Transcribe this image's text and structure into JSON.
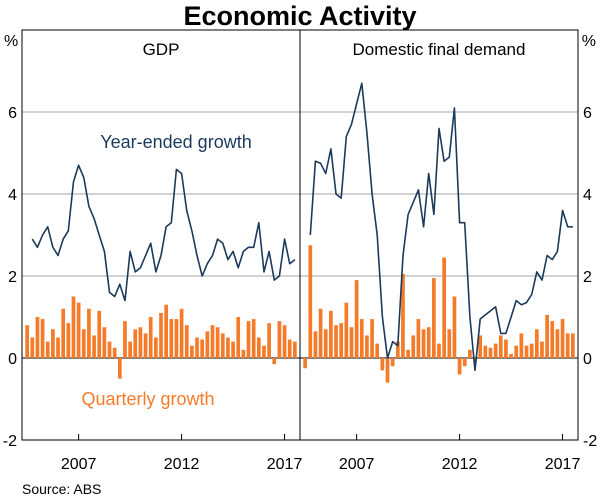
{
  "title": "Economic Activity",
  "source": "Source:   ABS",
  "colors": {
    "line": "#1b3a5c",
    "bar": "#f47b2a",
    "grid": "#a6a6a6"
  },
  "chart_data": [
    {
      "type": "bar+line",
      "panel": "left",
      "title": "GDP",
      "ylabel_left": "%",
      "ylim": [
        -2,
        8
      ],
      "yticks": [
        -2,
        0,
        2,
        4,
        6
      ],
      "x_tick_labels": [
        "2007",
        "2012",
        "2017"
      ],
      "x_tick_years": [
        2007,
        2012,
        2017
      ],
      "x_start": 2004.25,
      "x_end": 2017.75,
      "annotations": {
        "line_label": "Year-ended growth",
        "bar_label": "Quarterly growth"
      },
      "series": [
        {
          "name": "Year-ended growth",
          "kind": "line",
          "x": [
            2004.75,
            2005.0,
            2005.25,
            2005.5,
            2005.75,
            2006.0,
            2006.25,
            2006.5,
            2006.75,
            2007.0,
            2007.25,
            2007.5,
            2007.75,
            2008.0,
            2008.25,
            2008.5,
            2008.75,
            2009.0,
            2009.25,
            2009.5,
            2009.75,
            2010.0,
            2010.25,
            2010.5,
            2010.75,
            2011.0,
            2011.25,
            2011.5,
            2011.75,
            2012.0,
            2012.25,
            2012.5,
            2012.75,
            2013.0,
            2013.25,
            2013.5,
            2013.75,
            2014.0,
            2014.25,
            2014.5,
            2014.75,
            2015.0,
            2015.25,
            2015.5,
            2015.75,
            2016.0,
            2016.25,
            2016.5,
            2016.75,
            2017.0,
            2017.25,
            2017.5
          ],
          "values": [
            2.9,
            2.7,
            3.0,
            3.2,
            2.7,
            2.5,
            2.9,
            3.1,
            4.3,
            4.7,
            4.4,
            3.7,
            3.4,
            3.0,
            2.6,
            1.6,
            1.5,
            1.8,
            1.4,
            2.6,
            2.1,
            2.2,
            2.5,
            2.8,
            2.1,
            2.5,
            3.2,
            3.3,
            4.6,
            4.5,
            3.6,
            3.1,
            2.5,
            2.0,
            2.3,
            2.5,
            2.9,
            2.8,
            2.4,
            2.6,
            2.2,
            2.6,
            2.7,
            2.7,
            3.3,
            2.1,
            2.6,
            1.9,
            2.0,
            2.9,
            2.3,
            2.4
          ]
        },
        {
          "name": "Quarterly growth",
          "kind": "bar",
          "x": [
            2004.5,
            2004.75,
            2005.0,
            2005.25,
            2005.5,
            2005.75,
            2006.0,
            2006.25,
            2006.5,
            2006.75,
            2007.0,
            2007.25,
            2007.5,
            2007.75,
            2008.0,
            2008.25,
            2008.5,
            2008.75,
            2009.0,
            2009.25,
            2009.5,
            2009.75,
            2010.0,
            2010.25,
            2010.5,
            2010.75,
            2011.0,
            2011.25,
            2011.5,
            2011.75,
            2012.0,
            2012.25,
            2012.5,
            2012.75,
            2013.0,
            2013.25,
            2013.5,
            2013.75,
            2014.0,
            2014.25,
            2014.5,
            2014.75,
            2015.0,
            2015.25,
            2015.5,
            2015.75,
            2016.0,
            2016.25,
            2016.5,
            2016.75,
            2017.0,
            2017.25,
            2017.5
          ],
          "values": [
            0.8,
            0.5,
            1.0,
            0.95,
            0.4,
            0.7,
            0.5,
            1.2,
            0.85,
            1.5,
            1.35,
            0.7,
            1.2,
            0.55,
            1.15,
            0.75,
            0.4,
            0.25,
            -0.5,
            0.9,
            0.4,
            0.7,
            0.75,
            0.6,
            1.0,
            0.5,
            1.1,
            1.3,
            0.95,
            0.95,
            1.2,
            0.8,
            0.3,
            0.5,
            0.45,
            0.65,
            0.8,
            0.75,
            0.6,
            0.5,
            0.4,
            1.0,
            0.2,
            0.9,
            0.95,
            0.5,
            0.3,
            0.85,
            -0.15,
            0.9,
            0.8,
            0.45,
            0.4
          ]
        }
      ]
    },
    {
      "type": "bar+line",
      "panel": "right",
      "title": "Domestic final demand",
      "ylabel_right": "%",
      "ylim": [
        -2,
        8
      ],
      "yticks": [
        -2,
        0,
        2,
        4,
        6
      ],
      "x_tick_labels": [
        "2007",
        "2012",
        "2017"
      ],
      "x_tick_years": [
        2007,
        2012,
        2017
      ],
      "x_start": 2004.25,
      "x_end": 2017.75,
      "series": [
        {
          "name": "Year-ended growth",
          "kind": "line",
          "x": [
            2004.75,
            2005.0,
            2005.25,
            2005.5,
            2005.75,
            2006.0,
            2006.25,
            2006.5,
            2006.75,
            2007.0,
            2007.25,
            2007.5,
            2007.75,
            2008.0,
            2008.25,
            2008.5,
            2008.75,
            2009.0,
            2009.25,
            2009.5,
            2009.75,
            2010.0,
            2010.25,
            2010.5,
            2010.75,
            2011.0,
            2011.25,
            2011.5,
            2011.75,
            2012.0,
            2012.25,
            2012.5,
            2012.75,
            2013.0,
            2013.25,
            2013.5,
            2013.75,
            2014.0,
            2014.25,
            2014.5,
            2014.75,
            2015.0,
            2015.25,
            2015.5,
            2015.75,
            2016.0,
            2016.25,
            2016.5,
            2016.75,
            2017.0,
            2017.25,
            2017.5
          ],
          "values": [
            3.0,
            4.8,
            4.75,
            4.5,
            5.1,
            4.0,
            3.9,
            5.4,
            5.7,
            6.2,
            6.7,
            5.5,
            4.0,
            3.0,
            1.0,
            0.0,
            0.4,
            0.3,
            2.5,
            3.5,
            3.8,
            4.1,
            3.2,
            4.5,
            3.5,
            5.6,
            4.8,
            4.9,
            6.1,
            3.3,
            3.3,
            1.0,
            -0.3,
            0.95,
            1.05,
            1.15,
            1.25,
            0.6,
            0.6,
            1.0,
            1.4,
            1.3,
            1.35,
            1.55,
            2.1,
            1.9,
            2.5,
            2.4,
            2.6,
            3.6,
            3.2,
            3.2
          ]
        },
        {
          "name": "Quarterly growth",
          "kind": "bar",
          "x": [
            2004.5,
            2004.75,
            2005.0,
            2005.25,
            2005.5,
            2005.75,
            2006.0,
            2006.25,
            2006.5,
            2006.75,
            2007.0,
            2007.25,
            2007.5,
            2007.75,
            2008.0,
            2008.25,
            2008.5,
            2008.75,
            2009.0,
            2009.25,
            2009.5,
            2009.75,
            2010.0,
            2010.25,
            2010.5,
            2010.75,
            2011.0,
            2011.25,
            2011.5,
            2011.75,
            2012.0,
            2012.25,
            2012.5,
            2012.75,
            2013.0,
            2013.25,
            2013.5,
            2013.75,
            2014.0,
            2014.25,
            2014.5,
            2014.75,
            2015.0,
            2015.25,
            2015.5,
            2015.75,
            2016.0,
            2016.25,
            2016.5,
            2016.75,
            2017.0,
            2017.25,
            2017.5
          ],
          "values": [
            -0.25,
            2.75,
            0.65,
            1.2,
            0.7,
            1.15,
            0.8,
            0.85,
            1.35,
            0.75,
            1.9,
            0.95,
            0.55,
            0.95,
            0.35,
            -0.3,
            -0.6,
            -0.2,
            0.4,
            2.05,
            0.2,
            0.55,
            0.95,
            0.7,
            0.75,
            1.95,
            0.35,
            2.45,
            0.7,
            1.5,
            -0.4,
            -0.2,
            0.2,
            -0.1,
            0.55,
            0.3,
            0.25,
            0.35,
            0.55,
            0.45,
            0.1,
            0.3,
            0.6,
            0.3,
            0.35,
            0.7,
            0.4,
            1.05,
            0.9,
            0.7,
            0.95,
            0.6,
            0.6
          ]
        }
      ]
    }
  ]
}
